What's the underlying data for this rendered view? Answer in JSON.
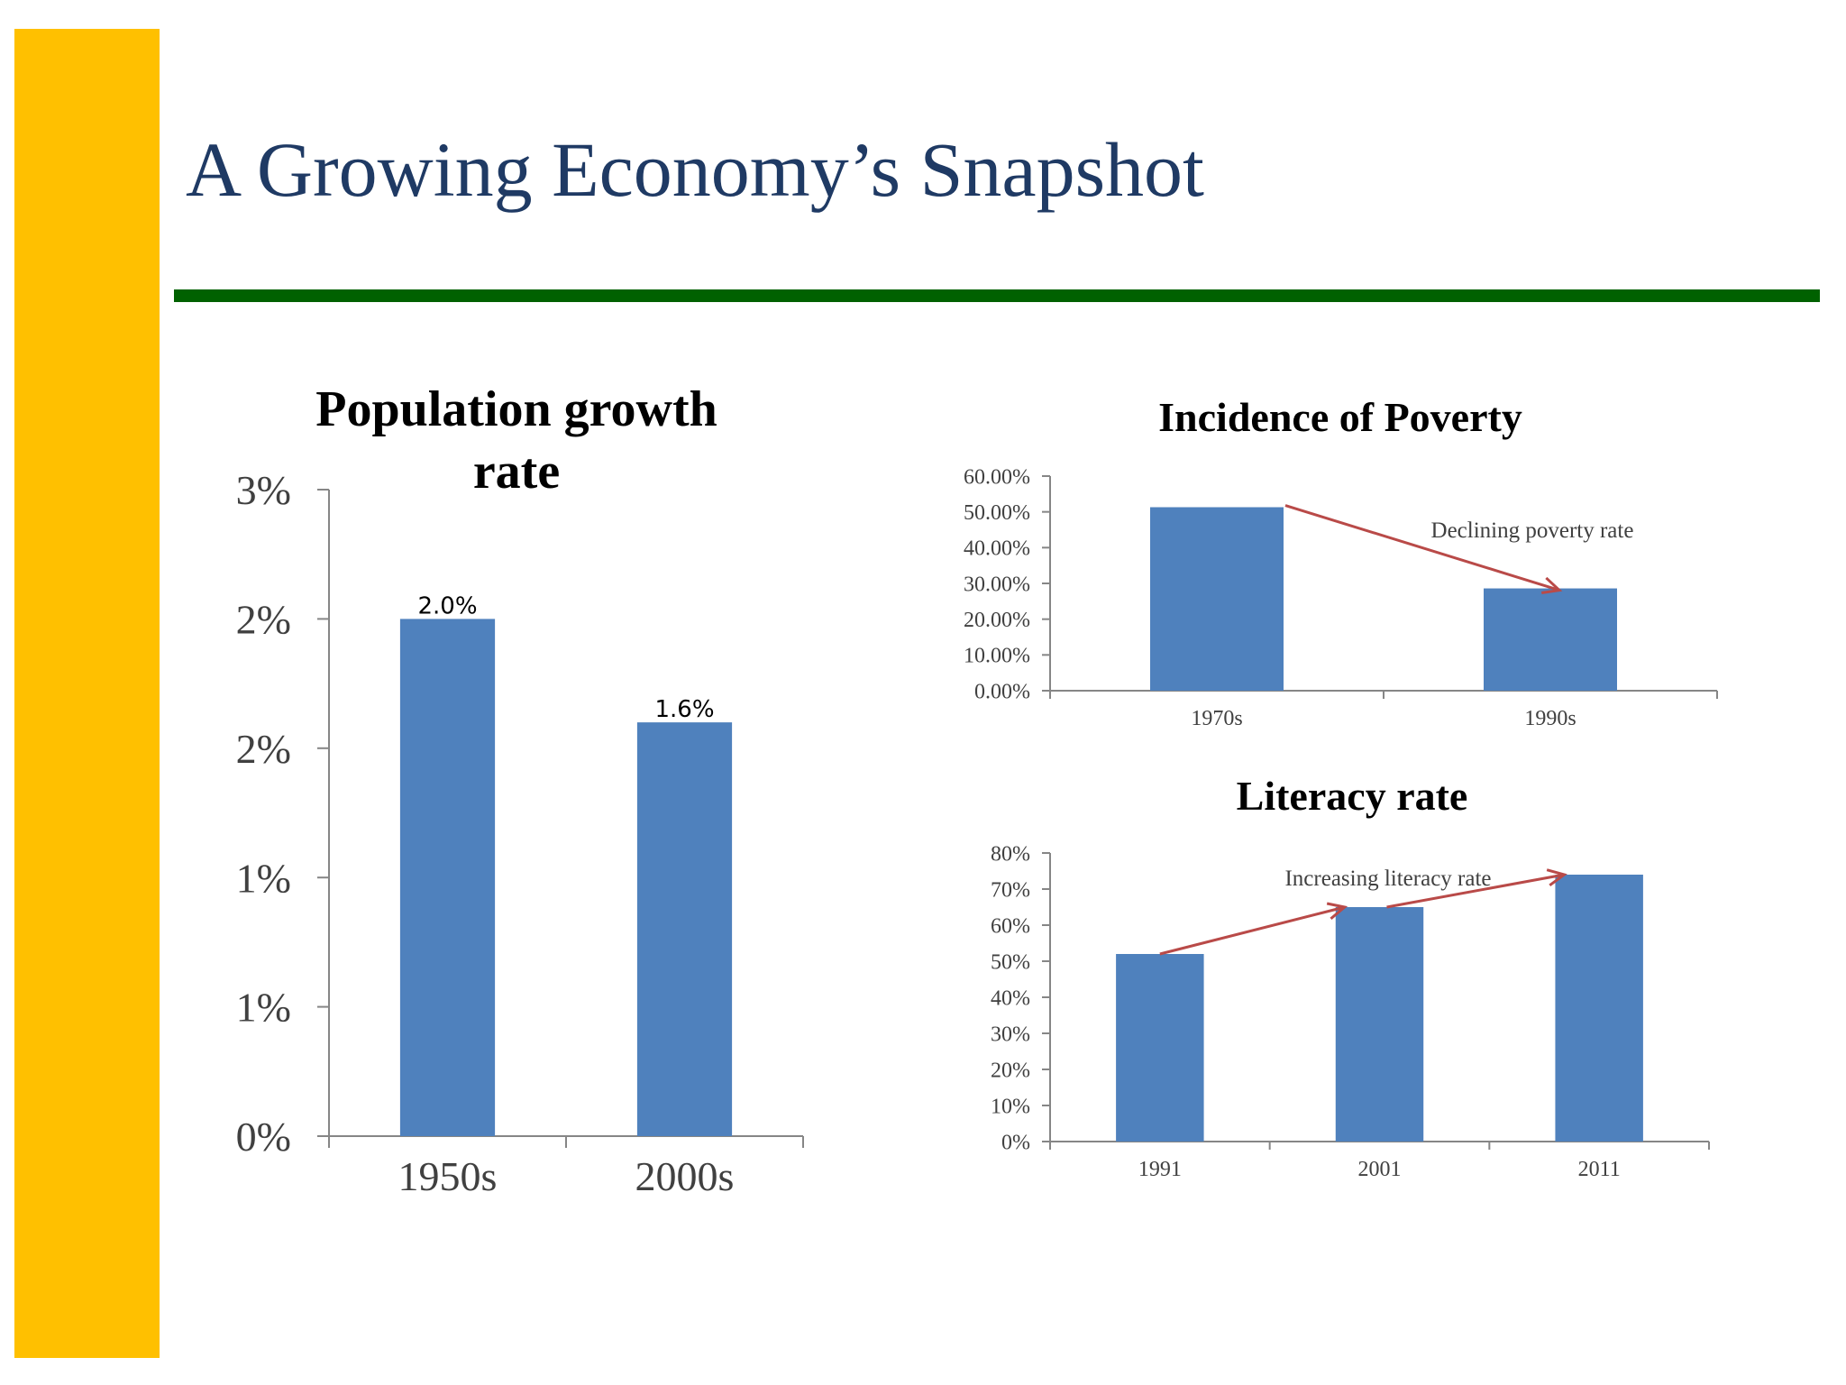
{
  "slide": {
    "title": "A Growing Economy’s Snapshot",
    "colors": {
      "left_bar": "#ffc000",
      "title_rule": "#006100",
      "title_text": "#1f3a64",
      "bar_fill": "#4f81bd",
      "arrow": "#b94a48"
    }
  },
  "chart_data": [
    {
      "type": "bar",
      "title": [
        "Population growth",
        "rate"
      ],
      "categories": [
        "1950s",
        "2000s"
      ],
      "values": [
        2.0,
        1.6
      ],
      "data_labels": [
        "2.0%",
        "1.6%"
      ],
      "y_ticks": [
        0,
        0.5,
        1.0,
        1.5,
        2.0,
        2.5
      ],
      "y_tick_labels": [
        "0%",
        "1%",
        "1%",
        "2%",
        "2%",
        "3%"
      ],
      "ylim": [
        0,
        2.5
      ],
      "legend": "none",
      "grid": false
    },
    {
      "type": "bar",
      "title": "Incidence of Poverty",
      "categories": [
        "1970s",
        "1990s"
      ],
      "values": [
        51.3,
        28.6
      ],
      "y_ticks": [
        0,
        10,
        20,
        30,
        40,
        50,
        60
      ],
      "y_tick_labels": [
        "0.00%",
        "10.00%",
        "20.00%",
        "30.00%",
        "40.00%",
        "50.00%",
        "60.00%"
      ],
      "ylim": [
        0,
        60
      ],
      "annotation": "Declining poverty rate",
      "legend": "none",
      "grid": false
    },
    {
      "type": "bar",
      "title": "Literacy rate",
      "categories": [
        "1991",
        "2001",
        "2011"
      ],
      "values": [
        52,
        65,
        74
      ],
      "y_ticks": [
        0,
        10,
        20,
        30,
        40,
        50,
        60,
        70,
        80
      ],
      "y_tick_labels": [
        "0%",
        "10%",
        "20%",
        "30%",
        "40%",
        "50%",
        "60%",
        "70%",
        "80%"
      ],
      "ylim": [
        0,
        80
      ],
      "annotation": "Increasing literacy rate",
      "legend": "none",
      "grid": false
    }
  ]
}
